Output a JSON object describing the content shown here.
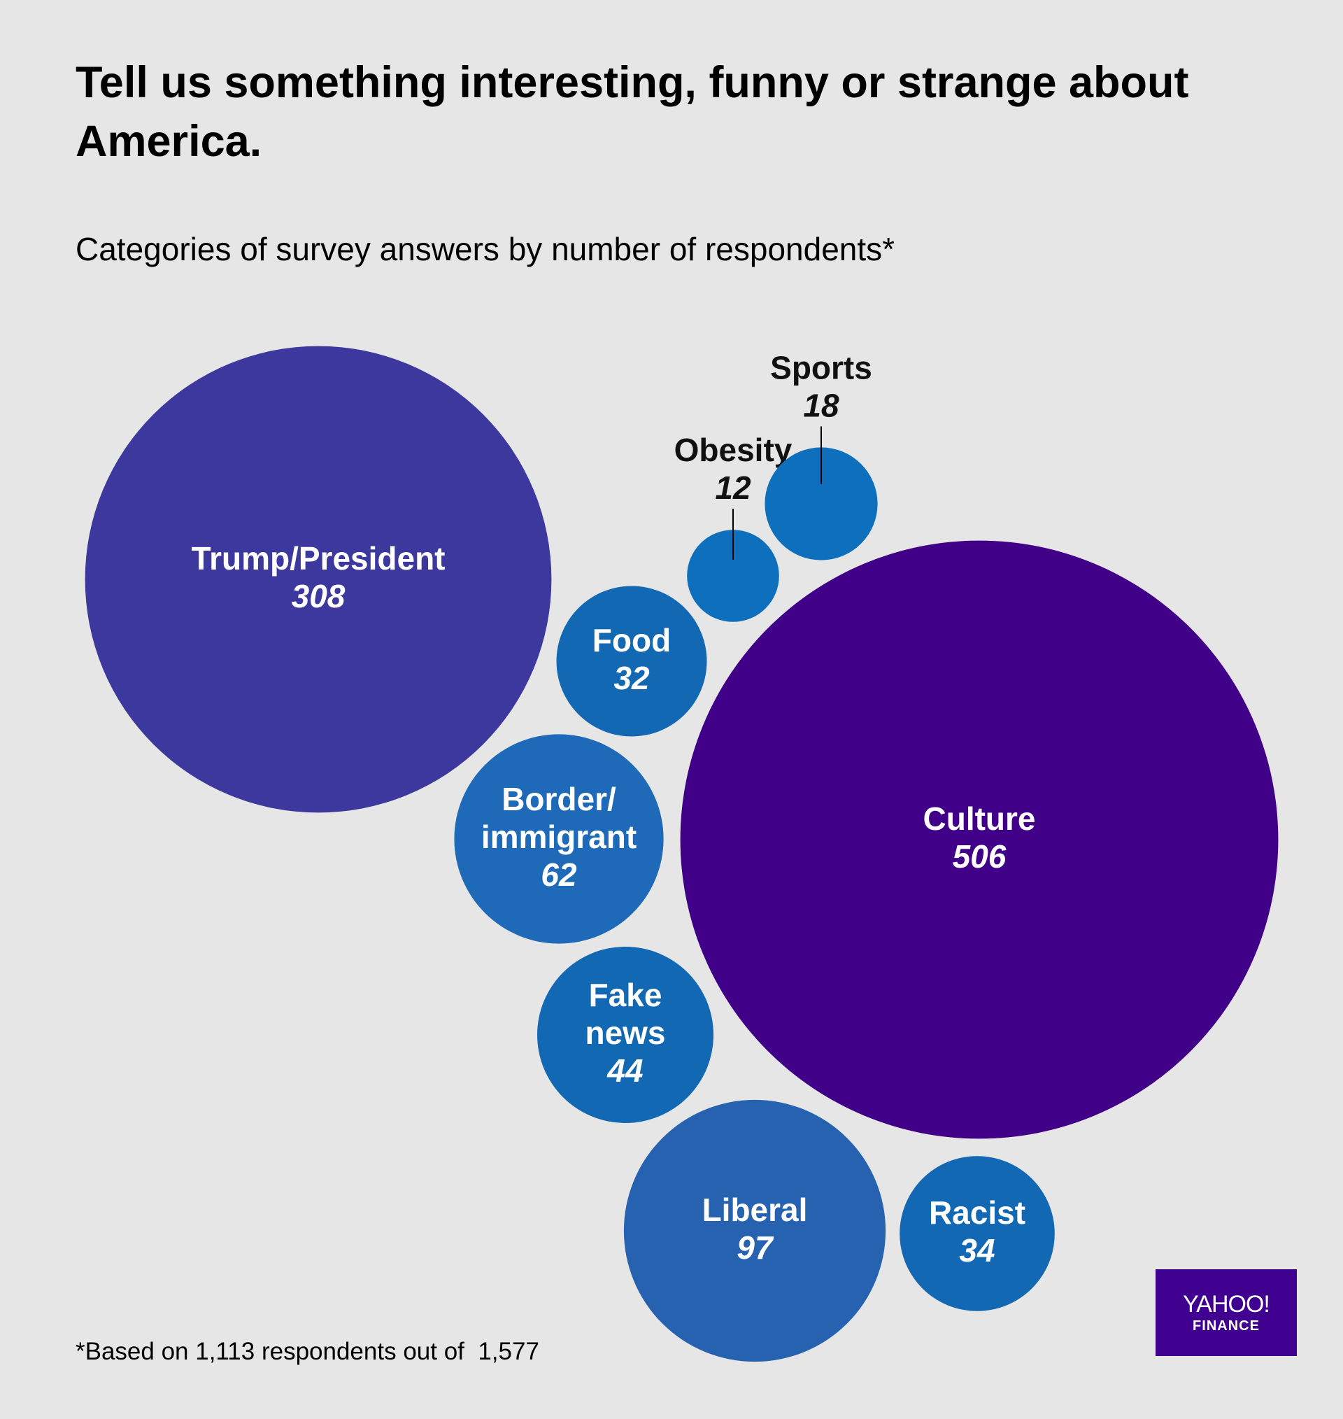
{
  "title": "Tell us something interesting, funny or strange about America.",
  "subtitle": "Categories of survey answers by number of respondents*",
  "footnote": "*Based on 1,113 respondents out of  1,577",
  "logo": {
    "line1": "YAHOO!",
    "line2": "FINANCE"
  },
  "colors": {
    "background": "#e6e6e6",
    "trump": "#3d389e",
    "culture": "#400088",
    "blue": "#1368b4",
    "mid_blue": "#1f6ab8",
    "liberal": "#2662b0",
    "small_blue": "#0e70bc",
    "logo": "#400090"
  },
  "chart_data": {
    "type": "bubble",
    "series": [
      {
        "label_lines": [
          "Trump/President"
        ],
        "value": 308,
        "color": "#3d389e"
      },
      {
        "label_lines": [
          "Culture"
        ],
        "value": 506,
        "color": "#400088"
      },
      {
        "label_lines": [
          "Food"
        ],
        "value": 32,
        "color": "#1368b4"
      },
      {
        "label_lines": [
          "Border/",
          "immigrant"
        ],
        "value": 62,
        "color": "#1f6ab8"
      },
      {
        "label_lines": [
          "Fake",
          "news"
        ],
        "value": 44,
        "color": "#1368b4"
      },
      {
        "label_lines": [
          "Liberal"
        ],
        "value": 97,
        "color": "#2662b0"
      },
      {
        "label_lines": [
          "Racist"
        ],
        "value": 34,
        "color": "#1368b4"
      },
      {
        "label_lines": [
          "Obesity"
        ],
        "value": 12,
        "color": "#0e70bc",
        "label_outside": true
      },
      {
        "label_lines": [
          "Sports"
        ],
        "value": 18,
        "color": "#0e70bc",
        "label_outside": true
      }
    ]
  }
}
